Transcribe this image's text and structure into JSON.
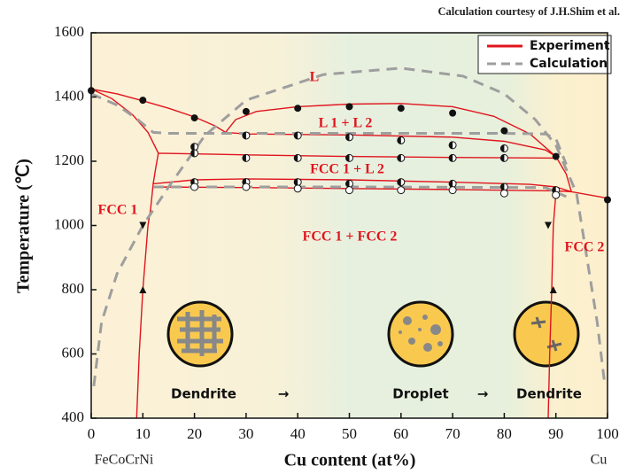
{
  "chart_data": {
    "type": "line",
    "subtitle": "Calculation courtesy of J.H.Shim et al.",
    "x_label": "Cu content (at%)",
    "y_label": "Temperature (℃)",
    "x_end_labels": [
      "FeCoCrNi",
      "Cu"
    ],
    "xlim": [
      0,
      100
    ],
    "ylim": [
      400,
      1600
    ],
    "xticks": [
      0,
      10,
      20,
      30,
      40,
      50,
      60,
      70,
      80,
      90,
      100
    ],
    "yticks": [
      400,
      600,
      800,
      1000,
      1200,
      1400,
      1600
    ],
    "legend_position": "upper right",
    "series": [
      {
        "name": "Experiment",
        "color": "#e0141e",
        "dash": "solid",
        "x": [
          0,
          5,
          10,
          15,
          20,
          24,
          26,
          null,
          0,
          4,
          8,
          11,
          13,
          12.5,
          12,
          11.5,
          11,
          10,
          9.3,
          8.8,
          null,
          26,
          28,
          32,
          40,
          50,
          60,
          70,
          78,
          85,
          90,
          null,
          26,
          30,
          50,
          70,
          80,
          88,
          90,
          null,
          13,
          30,
          50,
          70,
          90,
          null,
          12,
          20,
          30,
          50,
          70,
          85,
          90,
          93,
          null,
          12,
          30,
          50,
          70,
          90,
          93,
          null,
          90,
          92,
          93,
          100,
          null,
          90,
          89.5,
          89.2,
          88.8,
          88.5
        ],
        "values": [
          1425,
          1410,
          1388,
          1365,
          1338,
          1310,
          1290,
          null,
          1425,
          1395,
          1345,
          1290,
          1225,
          1180,
          1130,
          1050,
          1000,
          800,
          600,
          400,
          null,
          1290,
          1330,
          1355,
          1370,
          1378,
          1380,
          1370,
          1340,
          1285,
          1215,
          null,
          1290,
          1285,
          1282,
          1275,
          1262,
          1235,
          1215,
          null,
          1225,
          1220,
          1215,
          1212,
          1210,
          null,
          1130,
          1142,
          1145,
          1142,
          1135,
          1128,
          1120,
          1105,
          null,
          1120,
          1118,
          1115,
          1112,
          1108,
          1105,
          null,
          1215,
          1160,
          1105,
          1085,
          null,
          1100,
          1000,
          800,
          600,
          400
        ]
      },
      {
        "name": "Calculation",
        "color": "#9e9e9e",
        "dash": "dashed",
        "x": [
          0,
          5,
          9,
          12,
          15,
          50,
          80,
          88,
          90,
          92,
          null,
          0.5,
          2,
          5,
          10,
          15,
          22,
          30,
          45,
          60,
          72,
          80,
          86,
          90,
          94,
          96,
          98,
          99.5,
          null,
          12,
          50,
          88,
          92
        ],
        "values": [
          1410,
          1375,
          1330,
          1290,
          1287,
          1287,
          1287,
          1285,
          1270,
          1190,
          null,
          500,
          700,
          850,
          1000,
          1120,
          1280,
          1390,
          1470,
          1490,
          1465,
          1410,
          1330,
          1250,
          1100,
          900,
          700,
          500,
          null,
          1120,
          1120,
          1118,
          1090
        ]
      }
    ],
    "markers": [
      {
        "shape": "circle-filled",
        "x": [
          0,
          10,
          20,
          30,
          40,
          50,
          60,
          70,
          80,
          90,
          100
        ],
        "values": [
          1420,
          1390,
          1335,
          1355,
          1365,
          1370,
          1365,
          1350,
          1295,
          1215,
          1080
        ]
      },
      {
        "shape": "circle-half",
        "x": [
          20,
          30,
          40,
          50,
          60,
          70,
          80
        ],
        "values": [
          1245,
          1280,
          1280,
          1275,
          1265,
          1250,
          1240
        ]
      },
      {
        "shape": "circle-half",
        "x": [
          20,
          30,
          40,
          50,
          60,
          70,
          80
        ],
        "values": [
          1225,
          1210,
          1210,
          1210,
          1210,
          1210,
          1210
        ]
      },
      {
        "shape": "circle-half",
        "x": [
          20,
          30,
          40,
          50,
          60,
          70,
          80,
          90
        ],
        "values": [
          1135,
          1135,
          1135,
          1130,
          1135,
          1130,
          1120,
          1110
        ]
      },
      {
        "shape": "circle-open",
        "x": [
          20,
          30,
          40,
          50,
          60,
          70,
          80,
          90
        ],
        "values": [
          1120,
          1120,
          1115,
          1110,
          1110,
          1110,
          1100,
          1095
        ]
      },
      {
        "shape": "triangle-down",
        "x": [
          10,
          88.5
        ],
        "values": [
          1000,
          1000
        ]
      },
      {
        "shape": "triangle-up",
        "x": [
          10,
          89.5
        ],
        "values": [
          800,
          800
        ]
      }
    ],
    "annotations": [
      "L",
      "L 1 + L 2",
      "FCC 1 + L 2",
      "FCC 1 + FCC 2",
      "FCC 1",
      "FCC 2"
    ],
    "insets": [
      "Dendrite",
      "→",
      "Droplet",
      "→",
      "Dendrite"
    ]
  }
}
